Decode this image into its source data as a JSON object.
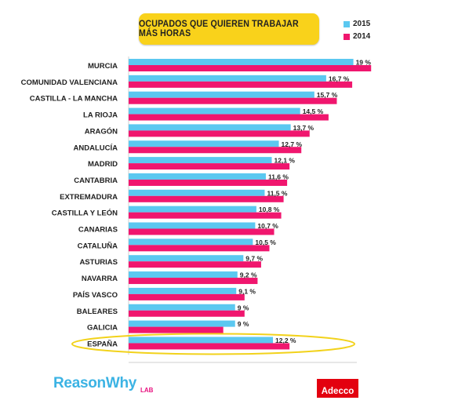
{
  "chart_data": {
    "type": "bar",
    "orientation": "horizontal",
    "title": "OCUPADOS QUE QUIEREN TRABAJAR MÁS HORAS",
    "xlim": [
      0,
      24
    ],
    "grid": false,
    "legend_position": "top-right",
    "categories": [
      "MURCIA",
      "COMUNIDAD VALENCIANA",
      "CASTILLA - LA MANCHA",
      "LA RIOJA",
      "ARAGÓN",
      "ANDALUCÍA",
      "MADRID",
      "CANTABRIA",
      "EXTREMADURA",
      "CASTILLA Y LEÓN",
      "CANARIAS",
      "CATALUÑA",
      "ASTURIAS",
      "NAVARRA",
      "PAÍS VASCO",
      "BALEARES",
      "GALICIA",
      "ESPAÑA"
    ],
    "series": [
      {
        "name": "2015",
        "color": "#5bc8f0",
        "values": [
          19,
          16.7,
          15.7,
          14.5,
          13.7,
          12.7,
          12.1,
          11.6,
          11.5,
          10.8,
          10.7,
          10.5,
          9.7,
          9.2,
          9.1,
          9,
          9,
          12.2
        ],
        "labels": [
          "19 %",
          "16,7 %",
          "15,7 %",
          "14,5 %",
          "13,7 %",
          "12,7 %",
          "12,1 %",
          "11,6 %",
          "11,5 %",
          "10,8 %",
          "10,7 %",
          "10,5 %",
          "9,7 %",
          "9,2 %",
          "9,1 %",
          "9 %",
          "9 %",
          "12,2 %"
        ]
      },
      {
        "name": "2014",
        "color": "#f0166e",
        "values": [
          20.5,
          18.9,
          17.6,
          16.9,
          15.3,
          14.6,
          13.6,
          13.4,
          13.1,
          12.9,
          12.3,
          11.9,
          11.2,
          10.9,
          9.8,
          9.8,
          8.0,
          13.6
        ]
      }
    ],
    "highlight_category": "ESPAÑA",
    "highlight_color": "#f2d21b"
  },
  "brand": {
    "left": "ReasonWhy",
    "left_suffix": "LAB",
    "right": "Adecco"
  }
}
